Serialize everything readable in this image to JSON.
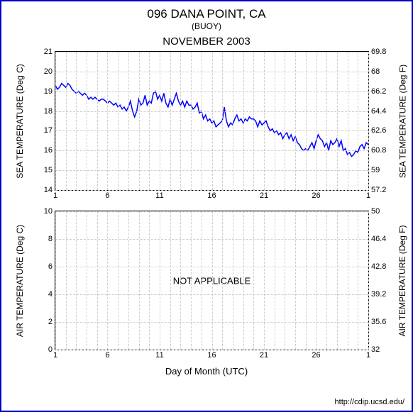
{
  "header": {
    "station": "096 DANA POINT, CA",
    "type": "(BUOY)",
    "period": "NOVEMBER 2003"
  },
  "sea_temp_chart": {
    "type": "line",
    "ylabel_left": "SEA TEMPERATURE (Deg C)",
    "ylabel_right": "SEA TEMPERATURE (Deg F)",
    "xlim": [
      1,
      31
    ],
    "ylim_c": [
      14,
      21
    ],
    "ylim_f": [
      57.2,
      69.8
    ],
    "xticks": [
      1,
      6,
      11,
      16,
      21,
      26,
      1
    ],
    "yticks_c": [
      14,
      15,
      16,
      17,
      18,
      19,
      20,
      21
    ],
    "yticks_f": [
      57.2,
      59,
      60.8,
      62.6,
      64.4,
      66.2,
      68,
      69.8
    ],
    "line_color": "#0000ff",
    "line_width": 1.5,
    "grid_color": "#cccccc",
    "background_color": "#ffffff",
    "data": [
      [
        1,
        19.3
      ],
      [
        1.2,
        19.1
      ],
      [
        1.4,
        19.2
      ],
      [
        1.6,
        19.4
      ],
      [
        1.8,
        19.3
      ],
      [
        2,
        19.2
      ],
      [
        2.2,
        19.4
      ],
      [
        2.4,
        19.3
      ],
      [
        2.6,
        19.1
      ],
      [
        2.8,
        19.0
      ],
      [
        3,
        18.9
      ],
      [
        3.2,
        19.0
      ],
      [
        3.4,
        18.9
      ],
      [
        3.6,
        18.8
      ],
      [
        3.8,
        18.9
      ],
      [
        4,
        18.8
      ],
      [
        4.2,
        18.6
      ],
      [
        4.4,
        18.7
      ],
      [
        4.6,
        18.6
      ],
      [
        4.8,
        18.7
      ],
      [
        5,
        18.6
      ],
      [
        5.2,
        18.5
      ],
      [
        5.4,
        18.6
      ],
      [
        5.6,
        18.6
      ],
      [
        5.8,
        18.5
      ],
      [
        6,
        18.4
      ],
      [
        6.2,
        18.5
      ],
      [
        6.4,
        18.4
      ],
      [
        6.6,
        18.3
      ],
      [
        6.8,
        18.4
      ],
      [
        7,
        18.2
      ],
      [
        7.2,
        18.3
      ],
      [
        7.4,
        18.1
      ],
      [
        7.6,
        18.2
      ],
      [
        7.8,
        18.0
      ],
      [
        8,
        18.2
      ],
      [
        8.2,
        18.5
      ],
      [
        8.4,
        18.0
      ],
      [
        8.6,
        17.7
      ],
      [
        8.8,
        18.0
      ],
      [
        9,
        18.6
      ],
      [
        9.2,
        18.3
      ],
      [
        9.4,
        18.4
      ],
      [
        9.6,
        18.8
      ],
      [
        9.8,
        18.3
      ],
      [
        10,
        18.5
      ],
      [
        10.2,
        18.4
      ],
      [
        10.4,
        18.9
      ],
      [
        10.6,
        19.0
      ],
      [
        10.8,
        18.6
      ],
      [
        11,
        18.8
      ],
      [
        11.2,
        18.5
      ],
      [
        11.4,
        18.9
      ],
      [
        11.6,
        18.4
      ],
      [
        11.8,
        18.2
      ],
      [
        12,
        18.6
      ],
      [
        12.2,
        18.3
      ],
      [
        12.4,
        18.6
      ],
      [
        12.6,
        18.9
      ],
      [
        12.8,
        18.5
      ],
      [
        13,
        18.3
      ],
      [
        13.2,
        18.5
      ],
      [
        13.4,
        18.2
      ],
      [
        13.6,
        18.5
      ],
      [
        13.8,
        18.3
      ],
      [
        14,
        18.3
      ],
      [
        14.2,
        18.1
      ],
      [
        14.4,
        18.2
      ],
      [
        14.6,
        18.4
      ],
      [
        14.8,
        17.9
      ],
      [
        15,
        18.0
      ],
      [
        15.2,
        17.6
      ],
      [
        15.4,
        17.8
      ],
      [
        15.6,
        17.5
      ],
      [
        15.8,
        17.6
      ],
      [
        16,
        17.4
      ],
      [
        16.2,
        17.5
      ],
      [
        16.4,
        17.2
      ],
      [
        16.6,
        17.3
      ],
      [
        16.8,
        17.4
      ],
      [
        17,
        17.5
      ],
      [
        17.2,
        18.2
      ],
      [
        17.4,
        17.5
      ],
      [
        17.6,
        17.2
      ],
      [
        17.8,
        17.4
      ],
      [
        18,
        17.3
      ],
      [
        18.2,
        17.6
      ],
      [
        18.4,
        17.8
      ],
      [
        18.6,
        17.5
      ],
      [
        18.8,
        17.6
      ],
      [
        19,
        17.4
      ],
      [
        19.2,
        17.6
      ],
      [
        19.4,
        17.5
      ],
      [
        19.6,
        17.7
      ],
      [
        19.8,
        17.6
      ],
      [
        20,
        17.6
      ],
      [
        20.2,
        17.5
      ],
      [
        20.4,
        17.2
      ],
      [
        20.6,
        17.5
      ],
      [
        20.8,
        17.3
      ],
      [
        21,
        17.4
      ],
      [
        21.2,
        17.5
      ],
      [
        21.4,
        17.2
      ],
      [
        21.6,
        17.0
      ],
      [
        21.8,
        17.1
      ],
      [
        22,
        16.9
      ],
      [
        22.2,
        17.0
      ],
      [
        22.4,
        16.8
      ],
      [
        22.6,
        16.9
      ],
      [
        22.8,
        16.6
      ],
      [
        23,
        16.8
      ],
      [
        23.2,
        16.9
      ],
      [
        23.4,
        16.6
      ],
      [
        23.6,
        16.8
      ],
      [
        23.8,
        16.5
      ],
      [
        24,
        16.7
      ],
      [
        24.2,
        16.4
      ],
      [
        24.4,
        16.3
      ],
      [
        24.6,
        16.1
      ],
      [
        24.8,
        16.0
      ],
      [
        25,
        16.1
      ],
      [
        25.2,
        16.0
      ],
      [
        25.4,
        16.2
      ],
      [
        25.6,
        16.4
      ],
      [
        25.8,
        16.1
      ],
      [
        26,
        16.5
      ],
      [
        26.2,
        16.8
      ],
      [
        26.4,
        16.6
      ],
      [
        26.6,
        16.5
      ],
      [
        26.8,
        16.2
      ],
      [
        27,
        16.4
      ],
      [
        27.2,
        16.0
      ],
      [
        27.4,
        16.5
      ],
      [
        27.6,
        16.3
      ],
      [
        27.8,
        16.4
      ],
      [
        28,
        16.6
      ],
      [
        28.2,
        16.2
      ],
      [
        28.4,
        16.5
      ],
      [
        28.6,
        16.0
      ],
      [
        28.8,
        16.1
      ],
      [
        29,
        15.8
      ],
      [
        29.2,
        15.9
      ],
      [
        29.4,
        15.7
      ],
      [
        29.6,
        15.8
      ],
      [
        29.8,
        16.0
      ],
      [
        30,
        15.9
      ],
      [
        30.2,
        16.2
      ],
      [
        30.4,
        16.3
      ],
      [
        30.6,
        16.1
      ],
      [
        30.8,
        16.4
      ],
      [
        31,
        16.3
      ]
    ]
  },
  "air_temp_chart": {
    "type": "line",
    "ylabel_left": "AIR TEMPERATURE (Deg C)",
    "ylabel_right": "AIR TEMPERATURE (Deg F)",
    "xlim": [
      1,
      31
    ],
    "ylim_c": [
      0,
      10
    ],
    "ylim_f": [
      32,
      50
    ],
    "xticks": [
      1,
      6,
      11,
      16,
      21,
      26,
      1
    ],
    "yticks_c": [
      0,
      2,
      4,
      6,
      8,
      10
    ],
    "yticks_f": [
      32,
      35.6,
      39.2,
      42.8,
      46.4,
      50
    ],
    "grid_color": "#cccccc",
    "background_color": "#ffffff",
    "overlay_text": "NOT APPLICABLE"
  },
  "xlabel": "Day of Month (UTC)",
  "footer": "http://cdip.ucsd.edu/"
}
